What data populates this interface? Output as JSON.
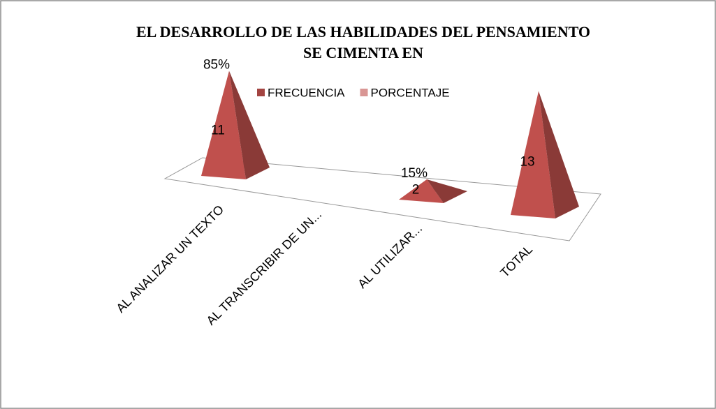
{
  "chart_data": {
    "type": "pyramid3d",
    "title": [
      "EL DESARROLLO DE LAS HABILIDADES DEL PENSAMIENTO",
      "SE CIMENTA  EN"
    ],
    "categories": [
      "AL ANALIZAR UN TEXTO",
      "AL TRANSCRIBIR DE UN...",
      "AL UTILIZAR...",
      "TOTAL"
    ],
    "series": [
      {
        "name": "FRECUENCIA",
        "color": "#c0504d",
        "values": [
          11,
          null,
          2,
          13
        ]
      },
      {
        "name": "PORCENTAJE",
        "color": "#d99694",
        "values": [
          85,
          null,
          15,
          null
        ],
        "value_labels": [
          "85%",
          null,
          "15%",
          null
        ]
      }
    ],
    "legend": "top"
  }
}
